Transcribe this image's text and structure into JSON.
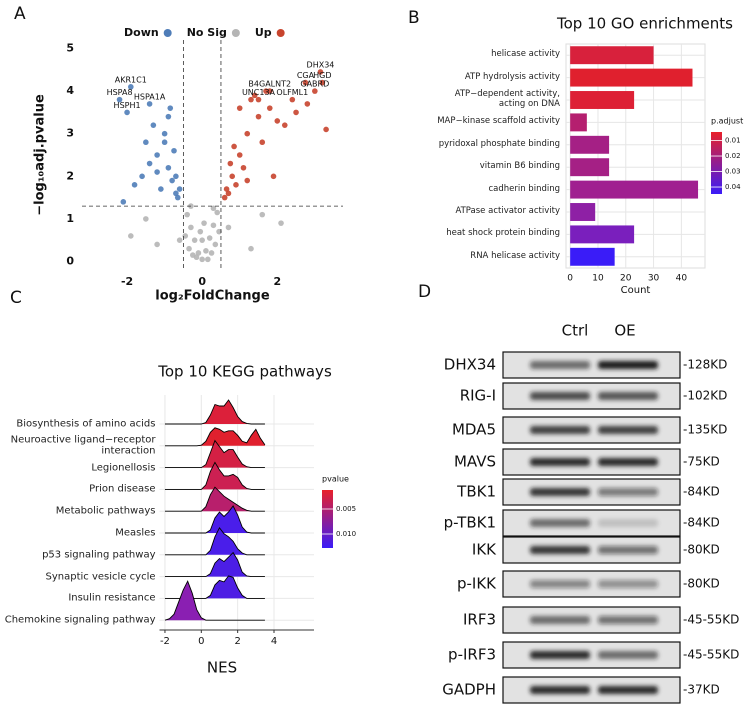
{
  "panel_labels": [
    "A",
    "B",
    "C",
    "D"
  ],
  "chart_data": [
    {
      "type": "scatter",
      "x_label": "log₂FoldChange",
      "y_label": "−log₁₀adj.pvalue",
      "xlim": [
        -3.2,
        3.75
      ],
      "ylim": [
        -0.2,
        5.2
      ],
      "xticks": [
        -2,
        0,
        2
      ],
      "yticks": [
        0,
        1,
        2,
        3,
        4,
        5
      ],
      "thresholds": {
        "x": [
          -0.5,
          0.5
        ],
        "y": [
          1.3
        ]
      },
      "series": [
        {
          "name": "Down",
          "color": "#4f7db8",
          "x": [
            -1.6,
            -1.2,
            -1.0,
            -0.9,
            -0.8,
            -0.7,
            -1.3,
            -1.5,
            -1.1,
            -0.75,
            -0.65,
            -1.8,
            -0.9,
            -1.4,
            -0.7,
            -2.1,
            -1.0,
            -0.85,
            -0.6,
            -1.2,
            -1.9,
            -2.2,
            -1.4,
            -2.0
          ],
          "y": [
            2.0,
            2.5,
            3.0,
            2.2,
            1.9,
            1.6,
            3.2,
            2.8,
            1.7,
            2.6,
            1.5,
            1.8,
            3.4,
            2.3,
            2.0,
            1.4,
            2.8,
            3.6,
            1.7,
            2.1,
            4.1,
            3.8,
            3.7,
            3.5
          ]
        },
        {
          "name": "No Sig",
          "color": "#b5b5b5",
          "x": [
            -0.4,
            -0.3,
            -0.2,
            -0.1,
            0,
            0.1,
            0.2,
            0.3,
            0.4,
            -0.35,
            0.35,
            -0.25,
            0.25,
            -0.15,
            0.15,
            0,
            -0.45,
            0.45,
            -1.5,
            -1.9,
            1.6,
            2.1,
            -0.6,
            0.7,
            -0.05,
            0.05,
            -0.3,
            0.3,
            1.3,
            -1.2
          ],
          "y": [
            1.1,
            0.8,
            0.5,
            0.2,
            0.05,
            0.25,
            0.55,
            0.85,
            1.15,
            0.3,
            0.4,
            0.15,
            0.2,
            0.1,
            0.05,
            0.5,
            0.6,
            0.7,
            1.0,
            0.6,
            1.1,
            0.9,
            0.5,
            0.8,
            0.7,
            0.9,
            1.3,
            1.25,
            0.3,
            0.4
          ]
        },
        {
          "name": "Up",
          "color": "#c8442d",
          "x": [
            0.6,
            0.8,
            1.0,
            1.2,
            0.9,
            0.7,
            1.5,
            1.8,
            1.1,
            1.3,
            2.0,
            0.65,
            1.6,
            2.2,
            0.75,
            1.4,
            1.9,
            1.0,
            2.5,
            0.85,
            1.7,
            2.8,
            3.3,
            1.2,
            3.15,
            2.75,
            3.2,
            1.8,
            3.0,
            2.4,
            1.5
          ],
          "y": [
            1.5,
            2.0,
            2.5,
            3.0,
            1.8,
            1.6,
            3.4,
            3.6,
            2.2,
            3.8,
            3.3,
            1.7,
            2.8,
            3.2,
            2.3,
            3.9,
            2.0,
            3.6,
            3.5,
            2.7,
            4.0,
            3.7,
            3.1,
            1.9,
            4.45,
            4.2,
            4.2,
            4.0,
            4.0,
            3.8,
            3.8
          ]
        }
      ],
      "annotations": [
        {
          "text": "DHX34",
          "x": 3.15,
          "y": 4.45
        },
        {
          "text": "CGA",
          "x": 2.75,
          "y": 4.2
        },
        {
          "text": "HGD",
          "x": 3.2,
          "y": 4.2
        },
        {
          "text": "B4GALNT2",
          "x": 1.8,
          "y": 4.0
        },
        {
          "text": "GABRD",
          "x": 3.0,
          "y": 4.0
        },
        {
          "text": "OLFML1",
          "x": 2.4,
          "y": 3.8
        },
        {
          "text": "UNC13A",
          "x": 1.5,
          "y": 3.8
        },
        {
          "text": "AKR1C1",
          "x": -1.9,
          "y": 4.1
        },
        {
          "text": "HSPA8",
          "x": -2.2,
          "y": 3.8
        },
        {
          "text": "HSPA1A",
          "x": -1.4,
          "y": 3.7
        },
        {
          "text": "HSPH1",
          "x": -2.0,
          "y": 3.5
        }
      ]
    },
    {
      "type": "bar",
      "orientation": "horizontal",
      "title": "Top 10 GO  enrichments",
      "x_label": "Count",
      "categories": [
        "helicase activity",
        "ATP hydrolysis activity",
        "ATP−dependent activity,\nacting on DNA",
        "MAP−kinase scaffold activity",
        "pyridoxal phosphate binding",
        "vitamin B6 binding",
        "cadherin binding",
        "ATPase activator activity",
        "heat shock protein binding",
        "RNA helicase activity"
      ],
      "values": [
        30,
        44,
        23,
        6,
        14,
        14,
        46,
        9,
        23,
        16
      ],
      "colors": [
        "#d8213c",
        "#e0202e",
        "#dd2035",
        "#b51f6f",
        "#a52085",
        "#a52085",
        "#a02090",
        "#8e20a5",
        "#7a1fbd",
        "#3a1cf8"
      ],
      "xlim": [
        -1.5,
        48.5
      ],
      "xticks": [
        0,
        10,
        20,
        30,
        40
      ],
      "grid": true,
      "colorbar": {
        "title": "p.adjust",
        "colors": [
          "#e8202a",
          "#3a1cf8"
        ],
        "clim": [
          0.0045,
          0.0445
        ],
        "ticks": [
          0.01,
          0.02,
          0.03,
          0.04
        ]
      }
    },
    {
      "type": "ridgeline",
      "title": "Top 10 KEGG pathways",
      "x_label": "NES",
      "x": [
        -2,
        -1.75,
        -1.5,
        -1.25,
        -1,
        -0.75,
        -0.5,
        -0.25,
        0,
        0.25,
        0.5,
        0.75,
        1,
        1.25,
        1.5,
        1.75,
        2,
        2.25,
        2.5,
        2.75,
        3,
        3.25,
        3.5
      ],
      "series": [
        {
          "name": "Biosynthesis of amino acids",
          "color": "#dc203a",
          "values": [
            0,
            0,
            0,
            0,
            0,
            0,
            0,
            0,
            0,
            0.05,
            0.3,
            0.65,
            0.6,
            0.6,
            0.8,
            0.55,
            0.25,
            0.08,
            0.02,
            0,
            0,
            0,
            0
          ]
        },
        {
          "name": "Neuroactive ligand−receptor\ninteraction",
          "color": "#e0202e",
          "values": [
            0,
            0,
            0,
            0,
            0,
            0,
            0,
            0,
            0.02,
            0.15,
            0.45,
            0.6,
            0.55,
            0.45,
            0.5,
            0.5,
            0.35,
            0.15,
            0.1,
            0.35,
            0.55,
            0.25,
            0.03
          ]
        },
        {
          "name": "Legionellosis",
          "color": "#d42044",
          "values": [
            0,
            0,
            0,
            0,
            0,
            0,
            0,
            0,
            0,
            0.1,
            0.5,
            0.9,
            0.7,
            0.5,
            0.6,
            0.6,
            0.35,
            0.12,
            0.03,
            0,
            0,
            0,
            0
          ]
        },
        {
          "name": "Prion disease",
          "color": "#cc2052",
          "values": [
            0,
            0,
            0,
            0,
            0,
            0,
            0,
            0,
            0,
            0.15,
            0.6,
            0.9,
            0.65,
            0.45,
            0.45,
            0.5,
            0.4,
            0.15,
            0.03,
            0,
            0,
            0,
            0
          ]
        },
        {
          "name": "Metabolic pathways",
          "color": "#b81f6c",
          "values": [
            0,
            0,
            0,
            0,
            0,
            0,
            0,
            0,
            0,
            0.15,
            0.55,
            0.8,
            0.65,
            0.5,
            0.4,
            0.3,
            0.2,
            0.1,
            0.03,
            0,
            0,
            0,
            0
          ]
        },
        {
          "name": "Measles",
          "color": "#4a1eea",
          "values": [
            0,
            0,
            0,
            0,
            0,
            0,
            0,
            0,
            0,
            0,
            0.1,
            0.5,
            0.7,
            0.55,
            0.7,
            0.9,
            0.6,
            0.2,
            0.03,
            0,
            0,
            0,
            0
          ]
        },
        {
          "name": "p53 signaling pathway",
          "color": "#4a1eea",
          "values": [
            0,
            0,
            0,
            0,
            0,
            0,
            0,
            0,
            0,
            0,
            0.15,
            0.6,
            0.9,
            0.7,
            0.6,
            0.45,
            0.2,
            0.06,
            0,
            0,
            0,
            0,
            0
          ]
        },
        {
          "name": "Synaptic vesicle cycle",
          "color": "#4c1ee6",
          "values": [
            0,
            0,
            0,
            0,
            0,
            0,
            0,
            0,
            0,
            0,
            0.1,
            0.45,
            0.6,
            0.5,
            0.65,
            0.8,
            0.55,
            0.15,
            0.02,
            0,
            0,
            0,
            0
          ]
        },
        {
          "name": "Insulin resistance",
          "color": "#4e1ee4",
          "values": [
            0,
            0,
            0,
            0,
            0,
            0,
            0,
            0,
            0,
            0,
            0.1,
            0.45,
            0.6,
            0.55,
            0.75,
            0.7,
            0.35,
            0.1,
            0,
            0,
            0,
            0,
            0
          ]
        },
        {
          "name": "Chemokine signaling pathway",
          "color": "#8a1fb2",
          "values": [
            0,
            0.05,
            0.2,
            0.6,
            1.0,
            1.3,
            0.9,
            0.35,
            0.08,
            0,
            0,
            0,
            0,
            0,
            0,
            0,
            0,
            0,
            0,
            0,
            0,
            0,
            0
          ]
        }
      ],
      "xlim": [
        -2.3,
        6.2
      ],
      "xticks": [
        -2,
        0,
        2,
        4
      ],
      "grid": true,
      "colorbar": {
        "title": "pvalue",
        "colors": [
          "#e8202a",
          "#3a1cf8"
        ],
        "clim": [
          0.0012,
          0.0128
        ],
        "ticks": [
          0.005,
          {
            "value": 0.01,
            "label": "0.010"
          }
        ]
      }
    }
  ],
  "blot": {
    "columns": [
      "Ctrl",
      "OE"
    ],
    "rows": [
      {
        "label": "DHX34",
        "size": "-128KD"
      },
      {
        "label": "RIG-I",
        "size": "-102KD"
      },
      {
        "label": "MDA5",
        "size": "-135KD"
      },
      {
        "label": "MAVS",
        "size": "-75KD"
      },
      {
        "label": "TBK1",
        "size": "-84KD"
      },
      {
        "label": "p-TBK1",
        "size": "-84KD"
      },
      {
        "label": "IKK",
        "size": "-80KD"
      },
      {
        "label": "p-IKK",
        "size": "-80KD"
      },
      {
        "label": "IRF3",
        "size": "-45-55KD"
      },
      {
        "label": "p-IRF3",
        "size": "-45-55KD"
      },
      {
        "label": "GADPH",
        "size": "-37KD"
      }
    ]
  }
}
